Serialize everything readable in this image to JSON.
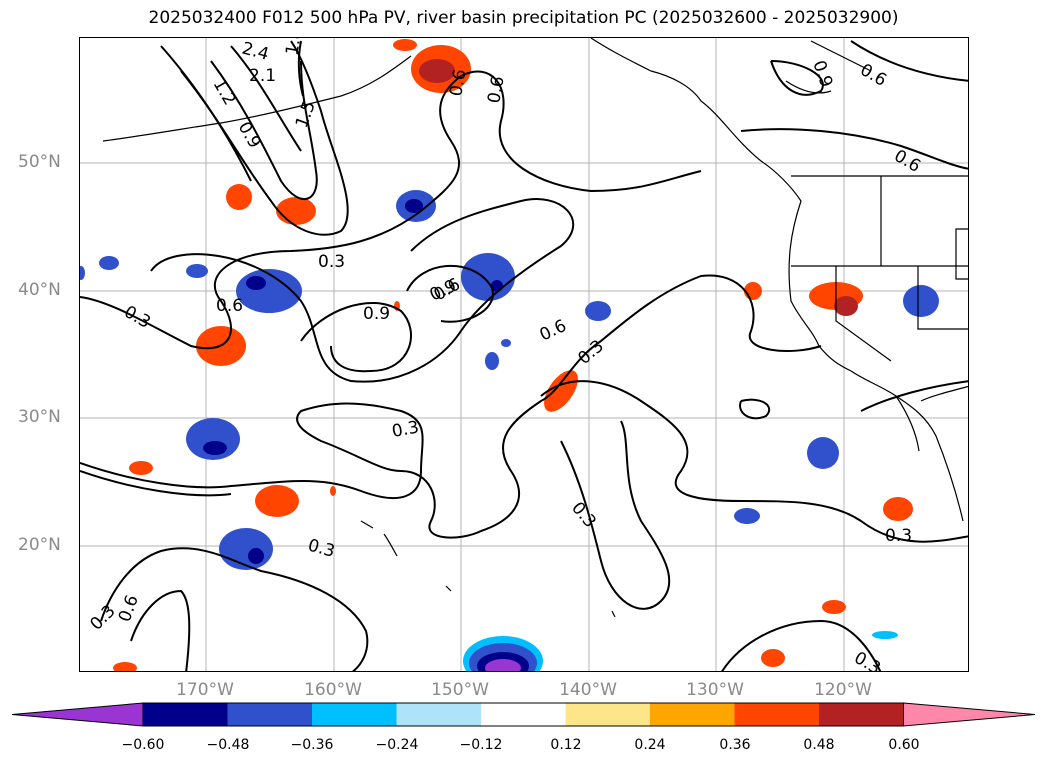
{
  "title": "2025032400 F012 500 hPa PV, river basin precipitation PC (2025032600 - 2025032900)",
  "lat_labels": [
    "50°N",
    "40°N",
    "30°N",
    "20°N"
  ],
  "lon_labels": [
    "170°W",
    "160°W",
    "150°W",
    "140°W",
    "130°W",
    "120°W"
  ],
  "contour_labels": [
    "2.4",
    "2.1",
    "1.8",
    "1.5",
    "1.2",
    "0.9",
    "0.6",
    "0.3",
    "0.3",
    "0.6",
    "0.9",
    "0.9",
    "0.6",
    "0.6",
    "0.3",
    "0.3",
    "0.3",
    "0.3",
    "0.3",
    "0.3",
    "0.6",
    "0.6",
    "0.6",
    "0.9",
    "0.6",
    "0.3"
  ],
  "colorbar": {
    "ticks": [
      "−0.60",
      "−0.48",
      "−0.36",
      "−0.24",
      "−0.12",
      "0.12",
      "0.24",
      "0.36",
      "0.48",
      "0.60"
    ],
    "colors": [
      "#9a35d4",
      "#00008b",
      "#3050cc",
      "#00bfff",
      "#aee3fa",
      "#ffffff",
      "#fde68a",
      "#ffa500",
      "#ff4500",
      "#b22222",
      "#ff88aa"
    ]
  }
}
